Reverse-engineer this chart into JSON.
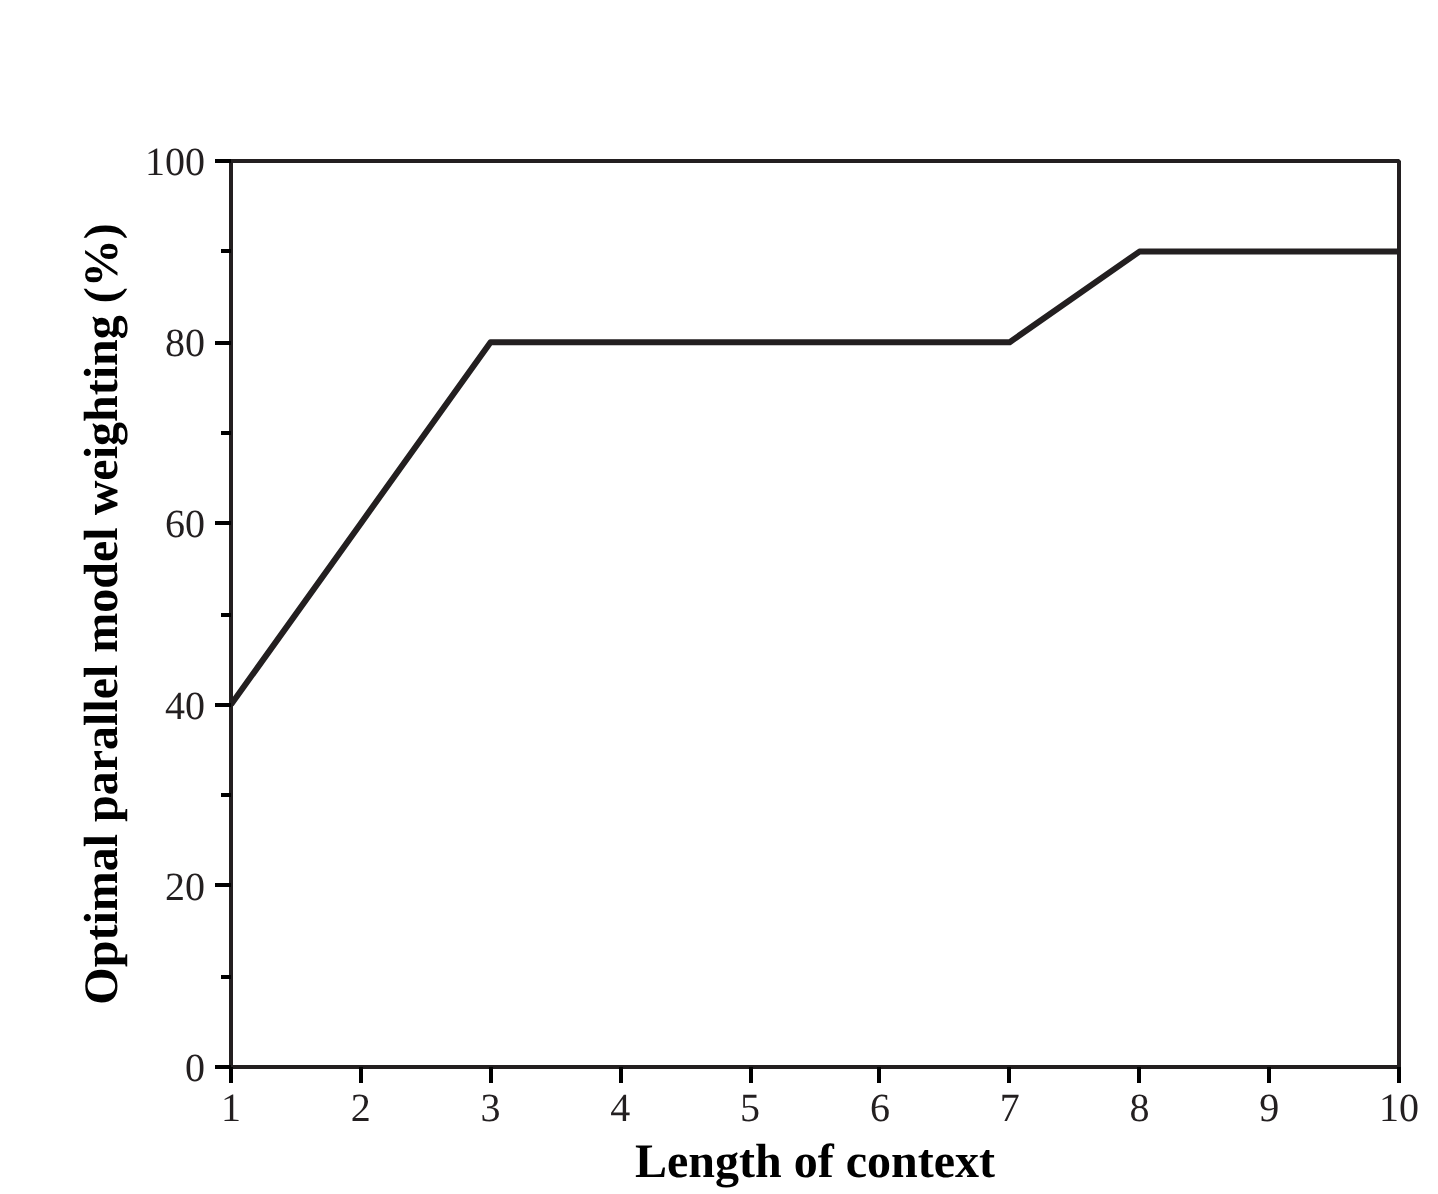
{
  "chart_data": {
    "type": "line",
    "xlabel": "Length of context",
    "ylabel": "Optimal parallel model weighting (%)",
    "x": [
      1,
      2,
      3,
      4,
      5,
      6,
      7,
      8,
      9,
      10
    ],
    "series": [
      {
        "color": "#231f20",
        "values": [
          40,
          60,
          80,
          80,
          80,
          80,
          80,
          90,
          90,
          90
        ]
      }
    ],
    "xlim": [
      1,
      10
    ],
    "ylim": [
      0,
      100
    ],
    "xticks": [
      1,
      2,
      3,
      4,
      5,
      6,
      7,
      8,
      9,
      10
    ],
    "yticks": [
      0,
      {
        "value": 10,
        "label": null
      },
      20,
      {
        "value": 30,
        "label": null
      },
      40,
      {
        "value": 50,
        "label": null
      },
      60,
      {
        "value": 70,
        "label": null
      },
      80,
      {
        "value": 90,
        "label": null
      },
      100
    ],
    "grid": false,
    "marker": "none",
    "line_style": "solid"
  }
}
